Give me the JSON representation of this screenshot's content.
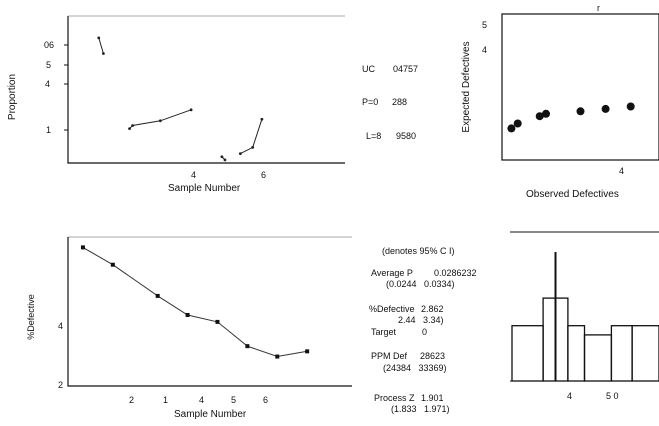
{
  "panel_top_left": {
    "xlabel": "Sample Number",
    "ylabel": "Proportion",
    "y_ticks": [
      "06",
      "5",
      "4",
      "1"
    ],
    "x_ticks": [
      "4",
      "6"
    ],
    "limit_labels": {
      "ucl_label": "UC",
      "ucl_value": "04757",
      "center_label": "P=0",
      "center_value": "288",
      "lcl_label": "L=8",
      "lcl_value": "9580"
    }
  },
  "panel_top_right": {
    "xlabel": "Observed Defectives",
    "ylabel": "Expected Defectives",
    "y_ticks": [
      "5",
      "4"
    ],
    "x_ticks": [
      "4"
    ],
    "top_label": "r"
  },
  "panel_bottom_left": {
    "xlabel": "Sample Number",
    "ylabel": "%Defective",
    "y_ticks": [
      "4",
      "2"
    ],
    "x_ticks": [
      "2",
      "1",
      "4",
      "5",
      "6"
    ]
  },
  "summary_stats": {
    "header": "(denotes 95% C I)",
    "avg_p_label": "Average P",
    "avg_p_value": "0.0286232",
    "avg_p_ci": "(0.0244   0.0334)",
    "pct_def_label": "%Defective",
    "pct_def_value": "2.862",
    "pct_def_ci": "2.44   3.34)",
    "target_label": "Target",
    "target_value": "0",
    "ppm_label": "PPM Def",
    "ppm_value": "28623",
    "ppm_ci": "(24384   33369)",
    "z_label": "Process Z",
    "z_value": "1.901",
    "z_ci": "(1.833   1.971)"
  },
  "panel_bottom_right": {
    "x_ticks": [
      "4",
      "5 0"
    ]
  },
  "chart_data": [
    {
      "type": "line",
      "title": "",
      "xlabel": "Sample Number",
      "ylabel": "Proportion",
      "xlim": [
        1,
        10
      ],
      "ylim": [
        0.015,
        0.062
      ],
      "series": [
        {
          "x": [
            2.0,
            2.15
          ],
          "y": [
            0.055,
            0.05
          ]
        },
        {
          "x": [
            3.0,
            3.1,
            4.0,
            5.0
          ],
          "y": [
            0.026,
            0.027,
            0.0285,
            0.032
          ]
        },
        {
          "x": [
            6.0,
            6.1
          ],
          "y": [
            0.017,
            0.016
          ]
        },
        {
          "x": [
            6.6,
            7.0,
            7.3
          ],
          "y": [
            0.018,
            0.02,
            0.029
          ]
        }
      ],
      "limits": {
        "ucl": 0.04757,
        "center": 0.0286,
        "lcl": 0.0096
      }
    },
    {
      "type": "scatter",
      "title": "",
      "xlabel": "Observed Defectives",
      "ylabel": "Expected Defectives",
      "xlim": [
        0,
        5
      ],
      "ylim": [
        0,
        6
      ],
      "x": [
        0.3,
        0.5,
        1.2,
        1.4,
        2.5,
        3.3,
        4.1
      ],
      "y": [
        1.3,
        1.5,
        1.8,
        1.9,
        2.0,
        2.1,
        2.2
      ]
    },
    {
      "type": "line",
      "title": "",
      "xlabel": "Sample Number",
      "ylabel": "%Defective",
      "xlim": [
        0,
        9.5
      ],
      "ylim": [
        2,
        6.3
      ],
      "x": [
        0.5,
        1.5,
        3,
        4,
        5,
        6,
        7,
        8
      ],
      "y": [
        6.0,
        5.5,
        4.6,
        4.05,
        3.85,
        3.15,
        2.85,
        3.0
      ]
    },
    {
      "type": "bar",
      "title": "",
      "x_ticks": [
        "4",
        "5 0"
      ],
      "bin_edges": [
        0,
        1.5,
        2.7,
        3.5,
        4.8,
        5.8,
        7.1
      ],
      "values": [
        6,
        9,
        6,
        5,
        6,
        6
      ],
      "ylim": [
        0,
        14
      ],
      "spike": {
        "bin": 1,
        "value": 14
      }
    }
  ]
}
